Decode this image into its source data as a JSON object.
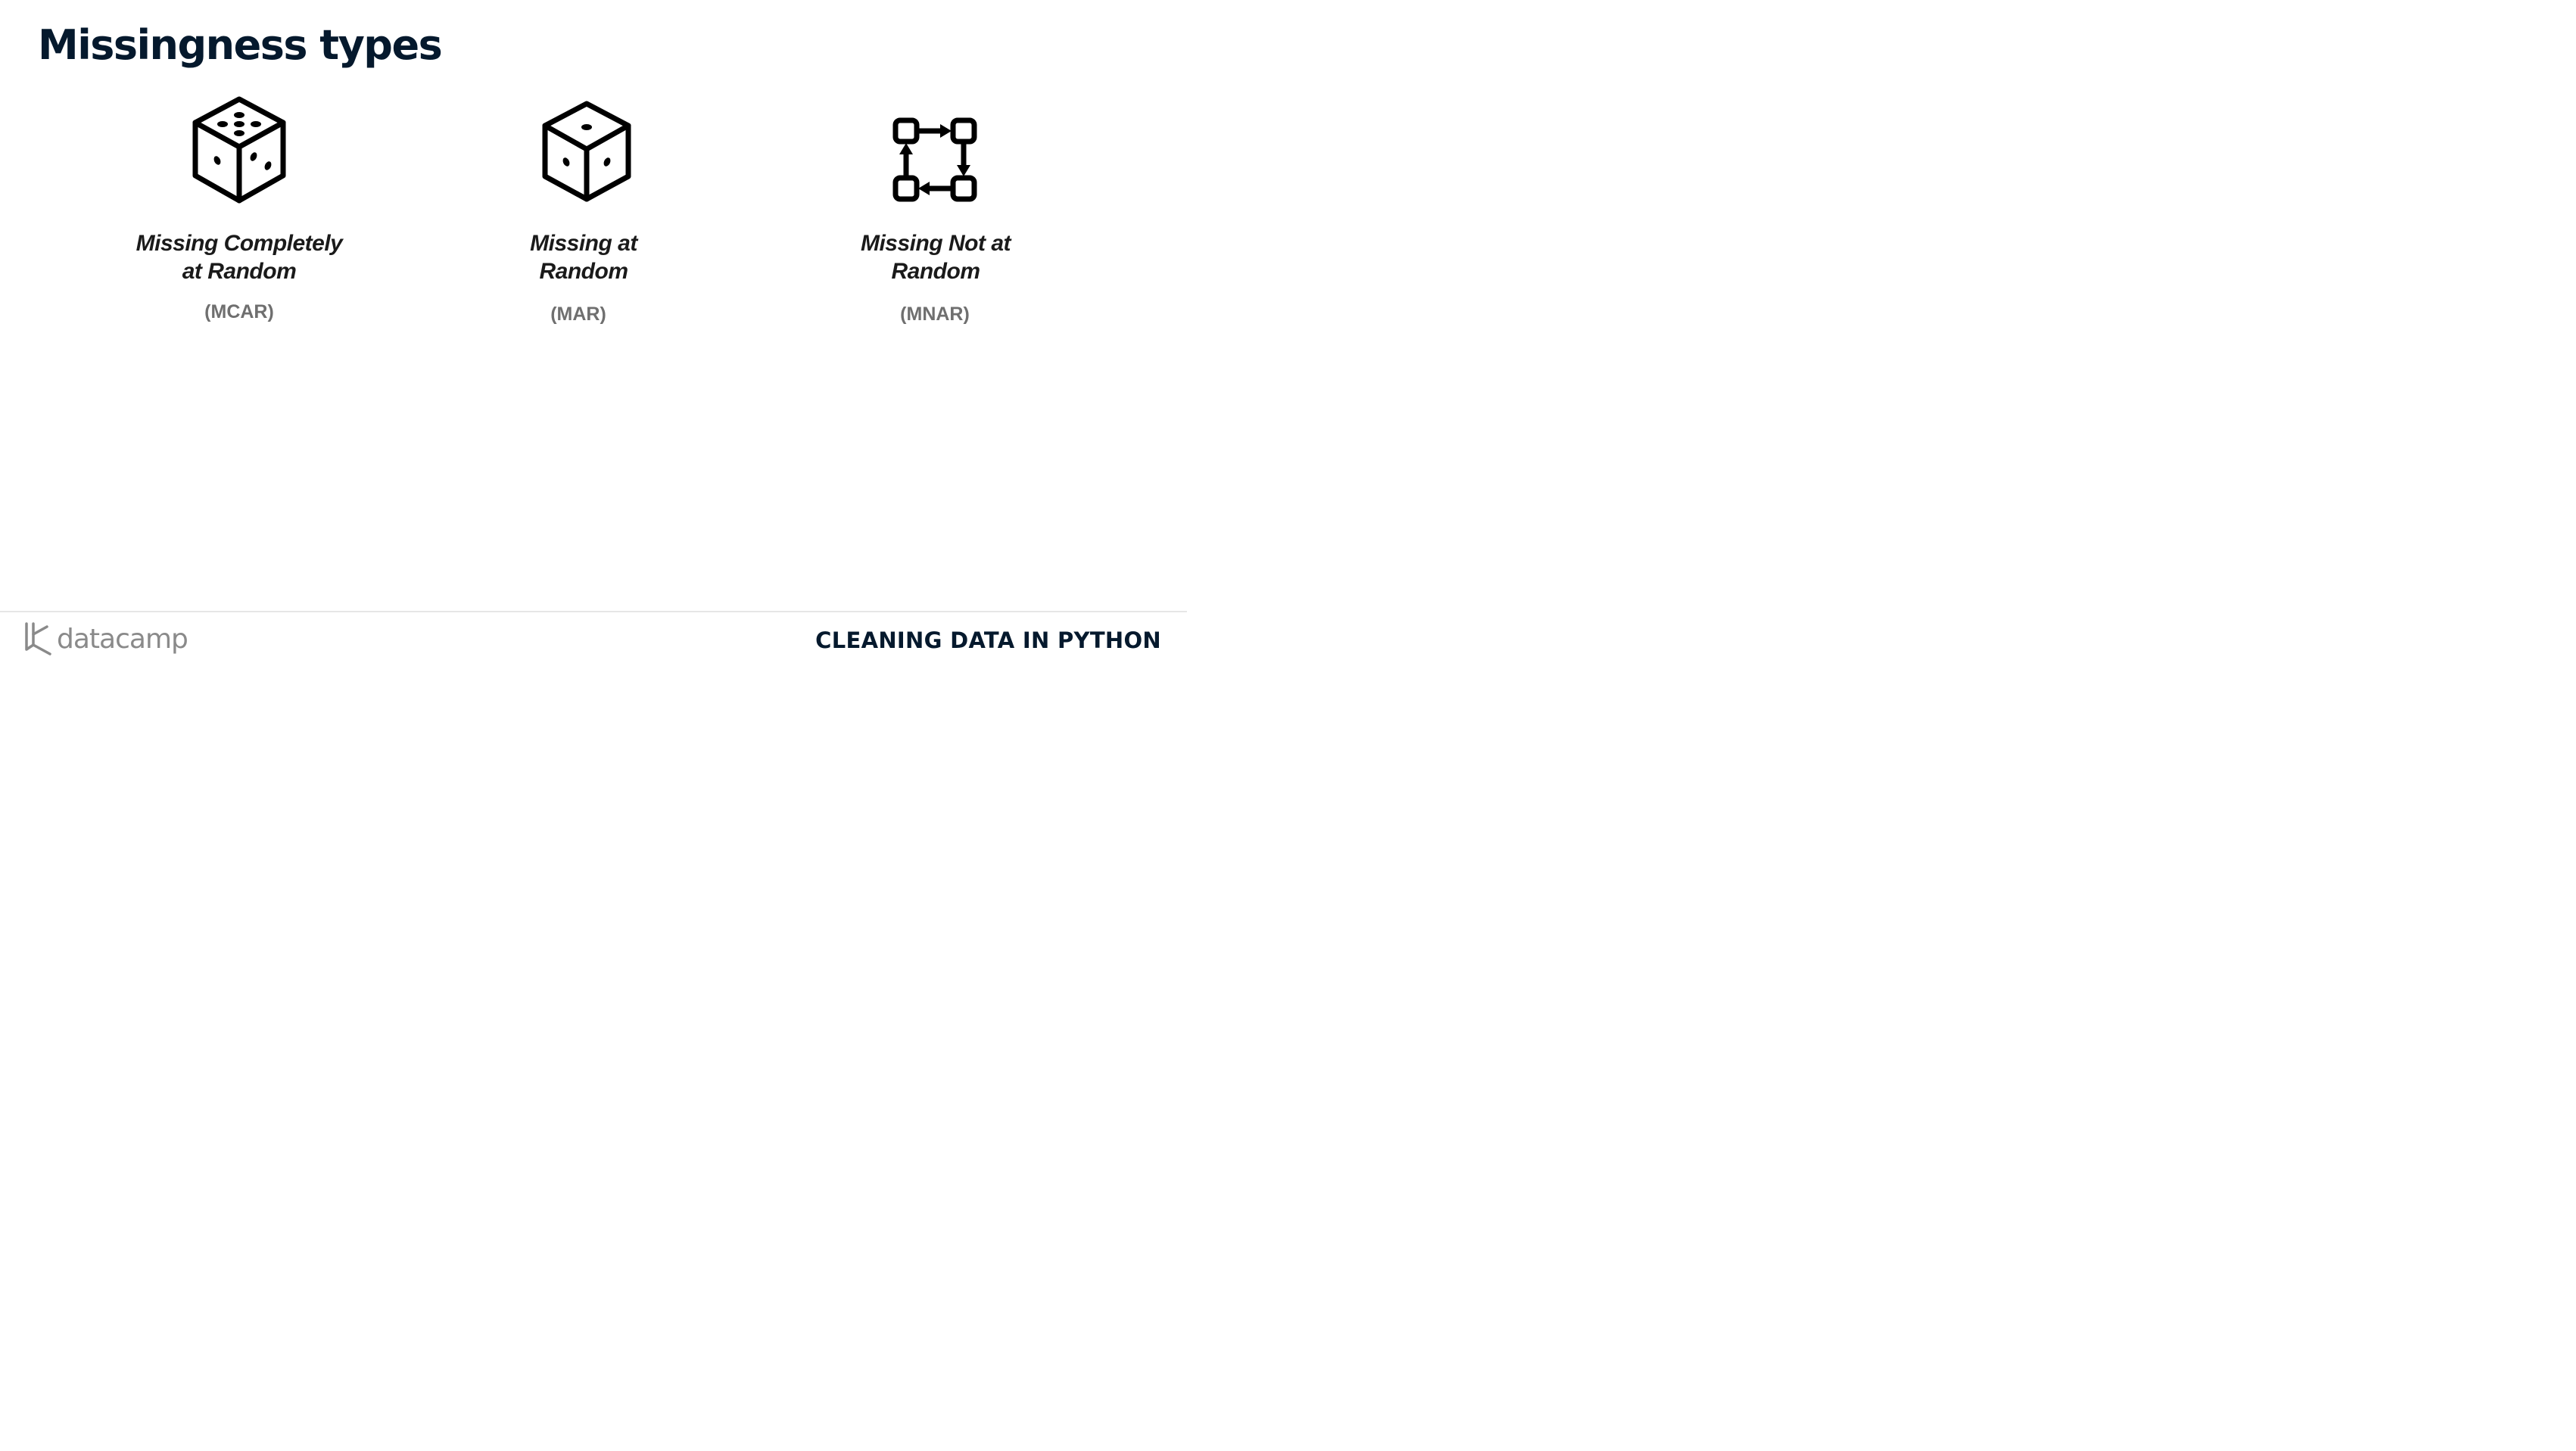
{
  "slide": {
    "title": "Missingness types"
  },
  "types": [
    {
      "name_line1": "Missing Completely",
      "name_line2": "at Random",
      "abbr": "(MCAR)",
      "icon": "dice-five-icon"
    },
    {
      "name_line1": "Missing at",
      "name_line2": "Random",
      "abbr": "(MAR)",
      "icon": "dice-three-icon"
    },
    {
      "name_line1": "Missing Not at",
      "name_line2": "Random",
      "abbr": "(MNAR)",
      "icon": "cycle-flow-icon"
    }
  ],
  "footer": {
    "brand": "datacamp",
    "course": "CLEANING DATA IN PYTHON"
  },
  "colors": {
    "title": "#05192d",
    "text": "#1a1a1a",
    "abbr": "#6f6f6f",
    "brand": "#8a8a8a"
  }
}
